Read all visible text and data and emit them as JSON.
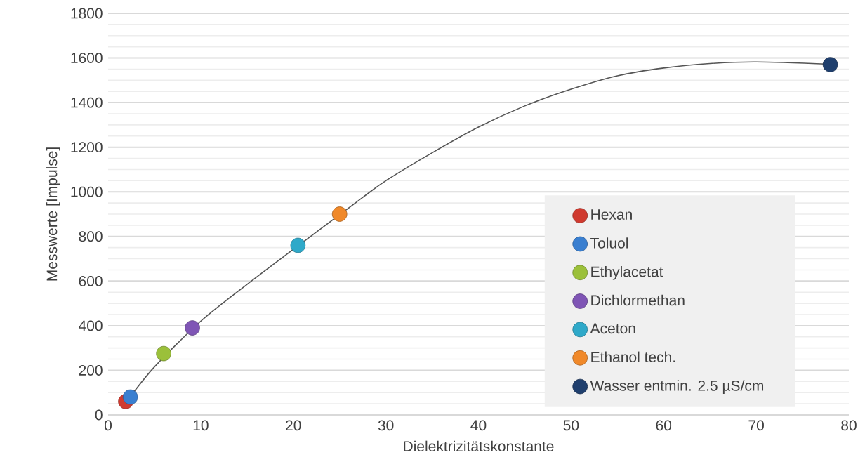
{
  "chart_data": {
    "type": "scatter",
    "xlabel": "Dielektrizitätskonstante",
    "ylabel": "Messwerte [Impulse]",
    "xlim": [
      0,
      80
    ],
    "xticks": [
      0,
      10,
      20,
      30,
      40,
      50,
      60,
      70,
      80
    ],
    "ylim": [
      0,
      1800
    ],
    "yticks": [
      0,
      200,
      400,
      600,
      800,
      1000,
      1200,
      1400,
      1600,
      1800
    ],
    "grid": "y",
    "legend": "bottom right",
    "series": [
      {
        "type": "line",
        "marker": "none",
        "color": "#555555",
        "x": [
          1.9,
          5,
          10,
          15,
          20,
          27.5,
          30,
          35,
          40,
          45,
          50,
          55,
          60,
          65,
          70,
          78
        ],
        "values": [
          55,
          215,
          420,
          585,
          742,
          975,
          1050,
          1175,
          1290,
          1385,
          1460,
          1520,
          1555,
          1575,
          1582,
          1572
        ]
      },
      {
        "name": "Hexan",
        "marker": "circle",
        "color": "#d03a2f",
        "x": [
          1.9
        ],
        "values": [
          60
        ]
      },
      {
        "name": "Toluol",
        "marker": "circle",
        "color": "#3a7fd0",
        "x": [
          2.4
        ],
        "values": [
          80
        ]
      },
      {
        "name": "Ethylacetat",
        "marker": "circle",
        "color": "#9bc03a",
        "x": [
          6.0
        ],
        "values": [
          275
        ]
      },
      {
        "name": "Dichlormethan",
        "marker": "circle",
        "color": "#7f55b5",
        "x": [
          9.1
        ],
        "values": [
          390
        ]
      },
      {
        "name": "Aceton",
        "marker": "circle",
        "color": "#2fa9c9",
        "x": [
          20.5
        ],
        "values": [
          760
        ]
      },
      {
        "name": "Ethanol tech.",
        "marker": "circle",
        "color": "#f0892a",
        "x": [
          25.0
        ],
        "values": [
          900
        ]
      },
      {
        "name": "Wasser entmin. 2.5 µS/cm",
        "marker": "circle",
        "color": "#1f3f6e",
        "x": [
          78
        ],
        "values": [
          1570
        ]
      }
    ]
  }
}
